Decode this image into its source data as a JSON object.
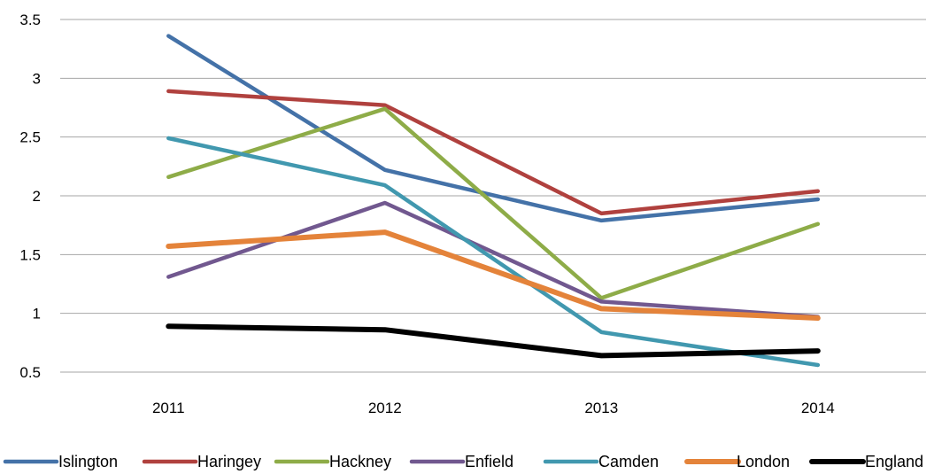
{
  "chart_data": {
    "type": "line",
    "title": "",
    "xlabel": "",
    "ylabel": "",
    "categories": [
      "2011",
      "2012",
      "2013",
      "2014"
    ],
    "ylim": [
      0.5,
      3.5
    ],
    "yticks": [
      "0.5",
      "1",
      "1.5",
      "2",
      "2.5",
      "3",
      "3.5"
    ],
    "grid": true,
    "legend_position": "bottom",
    "series": [
      {
        "name": "Islington",
        "color": "#4472a8",
        "values": [
          3.36,
          2.22,
          1.79,
          1.97
        ]
      },
      {
        "name": "Haringey",
        "color": "#b0413e",
        "values": [
          2.89,
          2.77,
          1.85,
          2.04
        ]
      },
      {
        "name": "Hackney",
        "color": "#8eac48",
        "values": [
          2.16,
          2.74,
          1.13,
          1.76
        ]
      },
      {
        "name": "Enfield",
        "color": "#71588f",
        "values": [
          1.31,
          1.94,
          1.1,
          0.97
        ]
      },
      {
        "name": "Camden",
        "color": "#4198af",
        "values": [
          2.49,
          2.09,
          0.84,
          0.56
        ]
      },
      {
        "name": "London",
        "color": "#e4833a",
        "values": [
          1.57,
          1.69,
          1.04,
          0.96
        ]
      },
      {
        "name": "England",
        "color": "#000000",
        "values": [
          0.89,
          0.86,
          0.64,
          0.68
        ]
      }
    ]
  }
}
